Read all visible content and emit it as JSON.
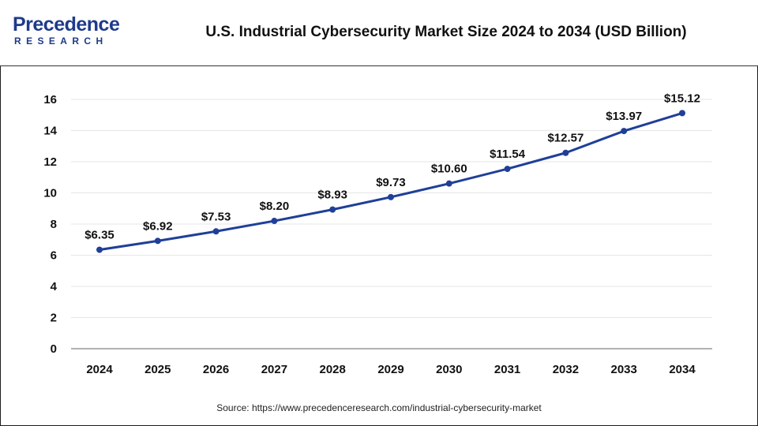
{
  "header": {
    "logo_line1": "Precedence",
    "logo_line2": "RESEARCH",
    "title": "U.S. Industrial Cybersecurity Market Size 2024 to 2034 (USD Billion)"
  },
  "source": "Source: https://www.precedenceresearch.com/industrial-cybersecurity-market",
  "colors": {
    "line": "#1f3f98",
    "brand": "#1e3a8a",
    "grid": "#e6e6e6",
    "axis": "#999999"
  },
  "chart_data": {
    "type": "line",
    "title": "U.S. Industrial Cybersecurity Market Size 2024 to 2034 (USD Billion)",
    "xlabel": "",
    "ylabel": "",
    "ylim": [
      0,
      16
    ],
    "yticks": [
      0,
      2,
      4,
      6,
      8,
      10,
      12,
      14,
      16
    ],
    "grid": true,
    "categories": [
      "2024",
      "2025",
      "2026",
      "2027",
      "2028",
      "2029",
      "2030",
      "2031",
      "2032",
      "2033",
      "2034"
    ],
    "values": [
      6.35,
      6.92,
      7.53,
      8.2,
      8.93,
      9.73,
      10.6,
      11.54,
      12.57,
      13.97,
      15.12
    ],
    "data_labels": [
      "$6.35",
      "$6.92",
      "$7.53",
      "$8.20",
      "$8.93",
      "$9.73",
      "$10.60",
      "$11.54",
      "$12.57",
      "$13.97",
      "$15.12"
    ]
  }
}
